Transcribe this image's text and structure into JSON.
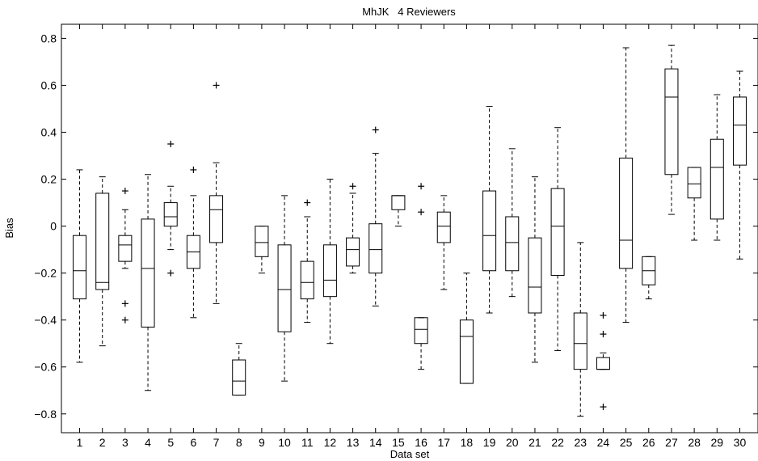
{
  "chart_data": {
    "type": "box",
    "title": "MhJK   4 Reviewers",
    "xlabel": "Data set",
    "ylabel": "Bias",
    "ylim": [
      -0.88,
      0.86
    ],
    "yticks": [
      -0.8,
      -0.6,
      -0.4,
      -0.2,
      0,
      0.2,
      0.4,
      0.6,
      0.8
    ],
    "ytick_labels": [
      "−0.8",
      "−0.6",
      "−0.4",
      "−0.2",
      "0",
      "0.2",
      "0.4",
      "0.6",
      "0.8"
    ],
    "categories": [
      "1",
      "2",
      "3",
      "4",
      "5",
      "6",
      "7",
      "8",
      "9",
      "10",
      "11",
      "12",
      "13",
      "14",
      "15",
      "16",
      "17",
      "18",
      "19",
      "20",
      "21",
      "22",
      "23",
      "24",
      "25",
      "26",
      "27",
      "28",
      "29",
      "30"
    ],
    "boxes": [
      {
        "whislo": -0.58,
        "q1": -0.31,
        "med": -0.19,
        "q3": -0.04,
        "whishi": 0.24,
        "fliers": []
      },
      {
        "whislo": -0.51,
        "q1": -0.27,
        "med": -0.24,
        "q3": 0.14,
        "whishi": 0.21,
        "fliers": []
      },
      {
        "whislo": -0.18,
        "q1": -0.15,
        "med": -0.08,
        "q3": -0.04,
        "whishi": 0.07,
        "fliers": [
          0.15,
          -0.33,
          -0.4
        ]
      },
      {
        "whislo": -0.7,
        "q1": -0.43,
        "med": -0.18,
        "q3": 0.03,
        "whishi": 0.22,
        "fliers": []
      },
      {
        "whislo": -0.1,
        "q1": 0.0,
        "med": 0.04,
        "q3": 0.1,
        "whishi": 0.17,
        "fliers": [
          0.35,
          -0.2
        ]
      },
      {
        "whislo": -0.39,
        "q1": -0.18,
        "med": -0.11,
        "q3": -0.04,
        "whishi": 0.13,
        "fliers": [
          0.24
        ]
      },
      {
        "whislo": -0.33,
        "q1": -0.07,
        "med": 0.07,
        "q3": 0.13,
        "whishi": 0.27,
        "fliers": [
          0.6
        ]
      },
      {
        "whislo": -0.72,
        "q1": -0.72,
        "med": -0.66,
        "q3": -0.57,
        "whishi": -0.5,
        "fliers": []
      },
      {
        "whislo": -0.2,
        "q1": -0.13,
        "med": -0.07,
        "q3": 0.0,
        "whishi": 0.0,
        "fliers": []
      },
      {
        "whislo": -0.66,
        "q1": -0.45,
        "med": -0.27,
        "q3": -0.08,
        "whishi": 0.13,
        "fliers": []
      },
      {
        "whislo": -0.41,
        "q1": -0.31,
        "med": -0.24,
        "q3": -0.15,
        "whishi": 0.04,
        "fliers": [
          0.1
        ]
      },
      {
        "whislo": -0.5,
        "q1": -0.3,
        "med": -0.23,
        "q3": -0.08,
        "whishi": 0.2,
        "fliers": []
      },
      {
        "whislo": -0.2,
        "q1": -0.17,
        "med": -0.1,
        "q3": -0.05,
        "whishi": 0.14,
        "fliers": [
          0.17
        ]
      },
      {
        "whislo": -0.34,
        "q1": -0.2,
        "med": -0.1,
        "q3": 0.01,
        "whishi": 0.31,
        "fliers": [
          0.41
        ]
      },
      {
        "whislo": 0.0,
        "q1": 0.07,
        "med": 0.13,
        "q3": 0.13,
        "whishi": 0.13,
        "fliers": []
      },
      {
        "whislo": -0.61,
        "q1": -0.5,
        "med": -0.44,
        "q3": -0.39,
        "whishi": -0.39,
        "fliers": [
          0.17,
          0.06
        ]
      },
      {
        "whislo": -0.27,
        "q1": -0.07,
        "med": 0.0,
        "q3": 0.06,
        "whishi": 0.13,
        "fliers": []
      },
      {
        "whislo": -0.67,
        "q1": -0.67,
        "med": -0.47,
        "q3": -0.4,
        "whishi": -0.2,
        "fliers": []
      },
      {
        "whislo": -0.37,
        "q1": -0.19,
        "med": -0.04,
        "q3": 0.15,
        "whishi": 0.51,
        "fliers": []
      },
      {
        "whislo": -0.3,
        "q1": -0.19,
        "med": -0.07,
        "q3": 0.04,
        "whishi": 0.33,
        "fliers": []
      },
      {
        "whislo": -0.58,
        "q1": -0.37,
        "med": -0.26,
        "q3": -0.05,
        "whishi": 0.21,
        "fliers": []
      },
      {
        "whislo": -0.53,
        "q1": -0.21,
        "med": 0.0,
        "q3": 0.16,
        "whishi": 0.42,
        "fliers": []
      },
      {
        "whislo": -0.81,
        "q1": -0.61,
        "med": -0.5,
        "q3": -0.37,
        "whishi": -0.07,
        "fliers": []
      },
      {
        "whislo": -0.61,
        "q1": -0.61,
        "med": -0.61,
        "q3": -0.56,
        "whishi": -0.54,
        "fliers": [
          -0.38,
          -0.46,
          -0.77
        ]
      },
      {
        "whislo": -0.41,
        "q1": -0.18,
        "med": -0.06,
        "q3": 0.29,
        "whishi": 0.76,
        "fliers": []
      },
      {
        "whislo": -0.31,
        "q1": -0.25,
        "med": -0.19,
        "q3": -0.13,
        "whishi": -0.13,
        "fliers": []
      },
      {
        "whislo": 0.05,
        "q1": 0.22,
        "med": 0.55,
        "q3": 0.67,
        "whishi": 0.77,
        "fliers": []
      },
      {
        "whislo": -0.06,
        "q1": 0.12,
        "med": 0.18,
        "q3": 0.25,
        "whishi": 0.25,
        "fliers": []
      },
      {
        "whislo": -0.06,
        "q1": 0.03,
        "med": 0.25,
        "q3": 0.37,
        "whishi": 0.56,
        "fliers": []
      },
      {
        "whislo": -0.14,
        "q1": 0.26,
        "med": 0.43,
        "q3": 0.55,
        "whishi": 0.66,
        "fliers": []
      }
    ],
    "grid": false,
    "legend": "none",
    "colors": {
      "box": "#000000",
      "median": "#000000",
      "whisker": "#000000",
      "flier": "#000000",
      "background": "#ffffff"
    }
  }
}
